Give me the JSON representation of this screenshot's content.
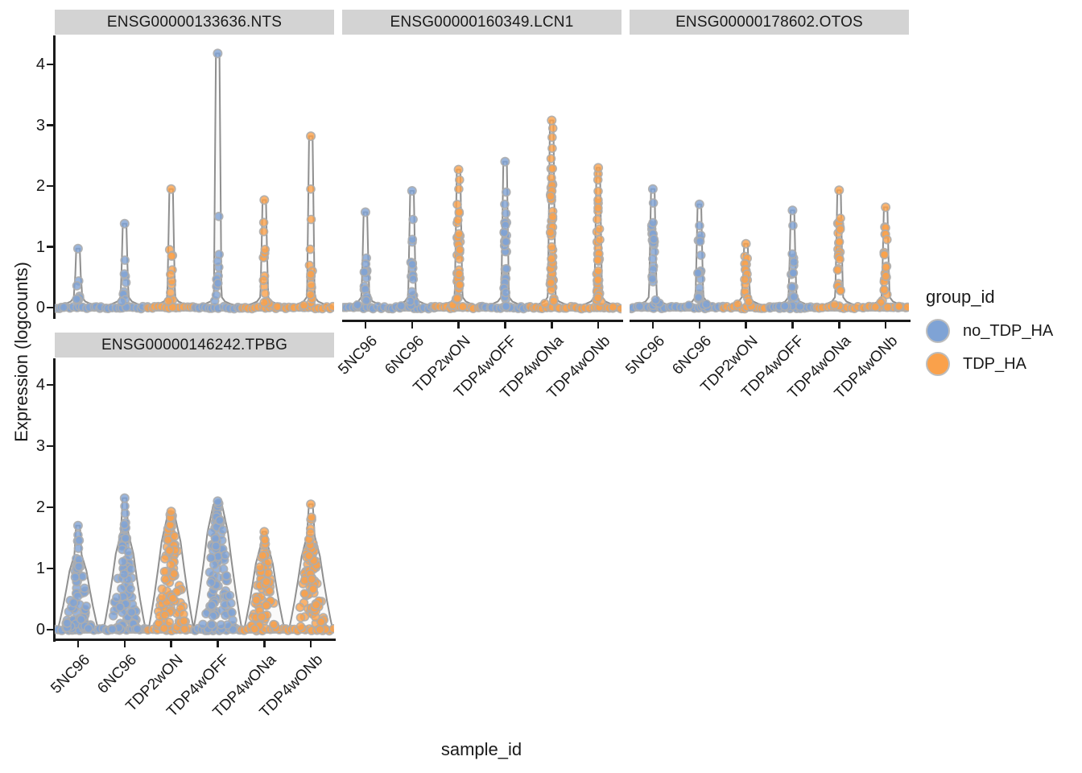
{
  "plot": {
    "ylabel": "Expression (logcounts)",
    "xlabel": "sample_id"
  },
  "legend": {
    "title": "group_id",
    "entries": [
      {
        "label": "no_TDP_HA",
        "color": "#7FA3D5"
      },
      {
        "label": "TDP_HA",
        "color": "#FAA14B"
      }
    ]
  },
  "chart_data": {
    "type": "violin-jitter",
    "title": "",
    "xlabel": "sample_id",
    "ylabel": "Expression (logcounts)",
    "x_categories": [
      "5NC96",
      "6NC96",
      "TDP2wON",
      "TDP4wOFF",
      "TDP4wONa",
      "TDP4wONb"
    ],
    "y_ticks": [
      0,
      1,
      2,
      3,
      4
    ],
    "ylim": [
      -0.1,
      4.35
    ],
    "grid": false,
    "legend_position": "right",
    "group_of_sample": {
      "5NC96": "no_TDP_HA",
      "6NC96": "no_TDP_HA",
      "TDP2wON": "TDP_HA",
      "TDP4wOFF": "no_TDP_HA",
      "TDP4wONa": "TDP_HA",
      "TDP4wONb": "TDP_HA"
    },
    "colors": {
      "no_TDP_HA": "#7FA3D5",
      "TDP_HA": "#FAA14B",
      "dot_stroke": "#ADADAD",
      "violin_stroke": "#8F8F8F",
      "violin_fill": "#FAFAFA",
      "strip_bg": "#D3D3D3",
      "axis": "#1a1a1a"
    },
    "facets": [
      {
        "title": "ENSG00000133636.NTS",
        "style": "spike",
        "violins": [
          {
            "sample": "5NC96",
            "group": "no_TDP_HA",
            "max": 0.97,
            "dense_max": 0.55,
            "tail_n": 7,
            "upper": []
          },
          {
            "sample": "6NC96",
            "group": "no_TDP_HA",
            "max": 1.38,
            "dense_max": 0.88,
            "tail_n": 10,
            "upper": []
          },
          {
            "sample": "TDP2wON",
            "group": "TDP_HA",
            "max": 1.95,
            "dense_max": 1.25,
            "tail_n": 12,
            "upper": []
          },
          {
            "sample": "TDP4wOFF",
            "group": "no_TDP_HA",
            "max": 4.18,
            "dense_max": 0.9,
            "tail_n": 10,
            "upper": [
              1.5
            ]
          },
          {
            "sample": "TDP4wONa",
            "group": "TDP_HA",
            "max": 1.77,
            "dense_max": 1.15,
            "tail_n": 13,
            "upper": [
              1.4,
              1.25
            ]
          },
          {
            "sample": "TDP4wONb",
            "group": "TDP_HA",
            "max": 2.82,
            "dense_max": 1.45,
            "tail_n": 13,
            "upper": [
              1.95,
              1.45
            ]
          }
        ]
      },
      {
        "title": "ENSG00000160349.LCN1",
        "style": "spike",
        "violins": [
          {
            "sample": "5NC96",
            "group": "no_TDP_HA",
            "max": 1.57,
            "dense_max": 0.95,
            "tail_n": 16,
            "upper": []
          },
          {
            "sample": "6NC96",
            "group": "no_TDP_HA",
            "max": 1.92,
            "dense_max": 1.15,
            "tail_n": 18,
            "upper": [
              1.45
            ]
          },
          {
            "sample": "TDP2wON",
            "group": "TDP_HA",
            "max": 2.27,
            "dense_max": 1.8,
            "tail_n": 38,
            "upper": [
              2.1,
              1.95
            ]
          },
          {
            "sample": "TDP4wOFF",
            "group": "no_TDP_HA",
            "max": 2.4,
            "dense_max": 1.4,
            "tail_n": 26,
            "upper": [
              1.9,
              1.7,
              1.55
            ]
          },
          {
            "sample": "TDP4wONa",
            "group": "TDP_HA",
            "max": 3.08,
            "dense_max": 2.3,
            "tail_n": 44,
            "upper": [
              2.95,
              2.8,
              2.62,
              2.45
            ]
          },
          {
            "sample": "TDP4wONb",
            "group": "TDP_HA",
            "max": 2.3,
            "dense_max": 2.05,
            "tail_n": 38,
            "upper": [
              2.2,
              2.1
            ]
          }
        ]
      },
      {
        "title": "ENSG00000178602.OTOS",
        "style": "spike",
        "violins": [
          {
            "sample": "5NC96",
            "group": "no_TDP_HA",
            "max": 1.95,
            "dense_max": 1.55,
            "tail_n": 22,
            "upper": [
              1.72
            ]
          },
          {
            "sample": "6NC96",
            "group": "no_TDP_HA",
            "max": 1.7,
            "dense_max": 1.4,
            "tail_n": 22,
            "upper": []
          },
          {
            "sample": "TDP2wON",
            "group": "TDP_HA",
            "max": 1.05,
            "dense_max": 0.9,
            "tail_n": 16,
            "upper": []
          },
          {
            "sample": "TDP4wOFF",
            "group": "no_TDP_HA",
            "max": 1.6,
            "dense_max": 1.3,
            "tail_n": 20,
            "upper": [
              1.35
            ]
          },
          {
            "sample": "TDP4wONa",
            "group": "TDP_HA",
            "max": 1.93,
            "dense_max": 1.5,
            "tail_n": 26,
            "upper": []
          },
          {
            "sample": "TDP4wONb",
            "group": "TDP_HA",
            "max": 1.65,
            "dense_max": 1.45,
            "tail_n": 26,
            "upper": []
          }
        ]
      },
      {
        "title": "ENSG00000146242.TPBG",
        "style": "cone",
        "violins": [
          {
            "sample": "5NC96",
            "group": "no_TDP_HA",
            "max": 1.7,
            "dense_max": 1.2,
            "tail_n": 70,
            "base_w": 25,
            "upper": [
              1.45
            ]
          },
          {
            "sample": "6NC96",
            "group": "no_TDP_HA",
            "max": 2.15,
            "dense_max": 1.55,
            "tail_n": 85,
            "base_w": 26,
            "upper": [
              1.9,
              1.75,
              1.65
            ]
          },
          {
            "sample": "TDP2wON",
            "group": "TDP_HA",
            "max": 1.93,
            "dense_max": 1.8,
            "tail_n": 95,
            "base_w": 28,
            "upper": [
              1.88
            ]
          },
          {
            "sample": "TDP4wOFF",
            "group": "no_TDP_HA",
            "max": 2.1,
            "dense_max": 2.0,
            "tail_n": 115,
            "base_w": 30,
            "upper": []
          },
          {
            "sample": "TDP4wONa",
            "group": "TDP_HA",
            "max": 1.6,
            "dense_max": 1.35,
            "tail_n": 75,
            "base_w": 25,
            "upper": [
              1.5
            ]
          },
          {
            "sample": "TDP4wONb",
            "group": "TDP_HA",
            "max": 2.05,
            "dense_max": 1.5,
            "tail_n": 85,
            "base_w": 27,
            "upper": [
              1.8,
              1.65
            ]
          }
        ]
      }
    ]
  }
}
